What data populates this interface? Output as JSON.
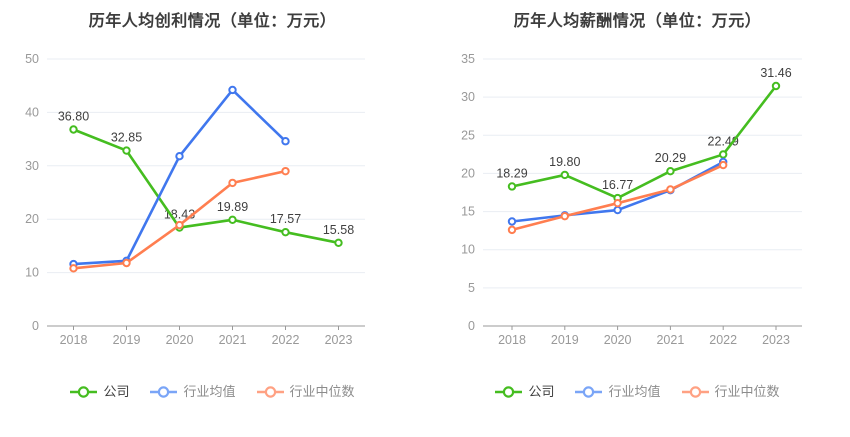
{
  "page": {
    "background": "#ffffff",
    "palette": {
      "grid": "#e9edf3",
      "axis": "#999999",
      "tick_label": "#999999",
      "data_label": "#404040",
      "title": "#3d3d3d"
    }
  },
  "chart_data": [
    {
      "type": "line",
      "title": "历年人均创利情况（单位：万元）",
      "categories": [
        "2018",
        "2019",
        "2020",
        "2021",
        "2022",
        "2023"
      ],
      "xlabel": "",
      "ylabel": "",
      "ylim": [
        0,
        50
      ],
      "yticks": [
        0,
        10,
        20,
        30,
        40,
        50
      ],
      "grid": true,
      "legend_position": "bottom",
      "series": [
        {
          "name": "公司",
          "color": "#45bd20",
          "legend_color": "#45bd20",
          "legend_text_color": "#3f3f3f",
          "values": [
            36.8,
            32.85,
            18.43,
            19.89,
            17.57,
            15.58
          ],
          "labels": [
            "36.80",
            "32.85",
            "18.43",
            "19.89",
            "17.57",
            "15.58"
          ],
          "show_labels": true
        },
        {
          "name": "行业均值",
          "color": "#4077ee",
          "legend_color": "#7aa5f7",
          "legend_text_color": "#8c8c8c",
          "values": [
            11.6,
            12.2,
            31.8,
            44.2,
            34.6,
            null
          ],
          "show_labels": false
        },
        {
          "name": "行业中位数",
          "color": "#ff7e50",
          "legend_color": "#ffa183",
          "legend_text_color": "#8c8c8c",
          "values": [
            10.8,
            11.8,
            18.9,
            26.8,
            29.0,
            null
          ],
          "show_labels": false
        }
      ]
    },
    {
      "type": "line",
      "title": "历年人均薪酬情况（单位：万元）",
      "categories": [
        "2018",
        "2019",
        "2020",
        "2021",
        "2022",
        "2023"
      ],
      "xlabel": "",
      "ylabel": "",
      "ylim": [
        0,
        35
      ],
      "yticks": [
        0,
        5,
        10,
        15,
        20,
        25,
        30,
        35
      ],
      "grid": true,
      "legend_position": "bottom",
      "series": [
        {
          "name": "公司",
          "color": "#45bd20",
          "legend_color": "#45bd20",
          "legend_text_color": "#3f3f3f",
          "values": [
            18.29,
            19.8,
            16.77,
            20.29,
            22.49,
            31.46
          ],
          "labels": [
            "18.29",
            "19.80",
            "16.77",
            "20.29",
            "22.49",
            "31.46"
          ],
          "show_labels": true
        },
        {
          "name": "行业均值",
          "color": "#4077ee",
          "legend_color": "#7aa5f7",
          "legend_text_color": "#8c8c8c",
          "values": [
            13.7,
            14.5,
            15.2,
            17.8,
            21.5,
            null
          ],
          "show_labels": false
        },
        {
          "name": "行业中位数",
          "color": "#ff7e50",
          "legend_color": "#ffa183",
          "legend_text_color": "#8c8c8c",
          "values": [
            12.6,
            14.4,
            16.1,
            17.9,
            21.1,
            null
          ],
          "show_labels": false
        }
      ]
    }
  ]
}
